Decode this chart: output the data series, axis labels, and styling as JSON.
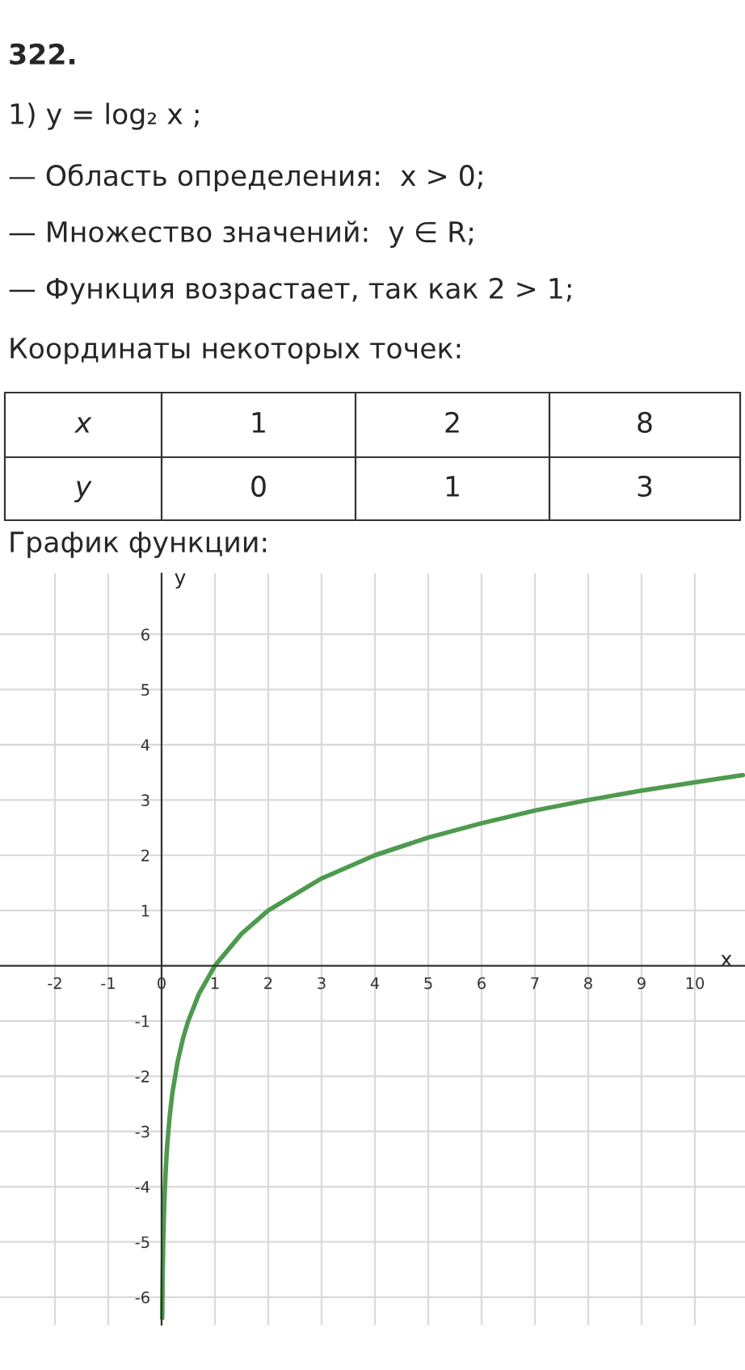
{
  "chart_data": {
    "type": "line",
    "annotations": [
      "322.",
      "1) y = log₂ x ;",
      "— Область определения:  x > 0;",
      "— Множество значений:  y ∈ R;",
      "— Функция возрастает, так как 2 > 1;",
      "Координаты некоторых точек:",
      "x",
      "1",
      "2",
      "8",
      "y",
      "0",
      "1",
      "3",
      "График функции:"
    ],
    "xlabel": "x",
    "ylabel": "y",
    "series": [
      {
        "color": "#4e9a4e",
        "x": [
          0.012,
          0.02,
          0.03,
          0.05,
          0.075,
          0.1,
          0.15,
          0.2,
          0.3,
          0.4,
          0.5,
          0.7,
          1,
          1.5,
          2,
          3,
          4,
          5,
          6,
          7,
          8,
          9,
          10,
          10.9
        ],
        "values": [
          -6.38,
          -5.64,
          -5.06,
          -4.32,
          -3.74,
          -3.32,
          -2.74,
          -2.32,
          -1.74,
          -1.32,
          -1,
          -0.51,
          0,
          0.58,
          1,
          1.58,
          2,
          2.32,
          2.58,
          2.81,
          3,
          3.17,
          3.32,
          3.45
        ]
      }
    ],
    "xlim": [
      -3.03,
      10.94
    ],
    "ylim": [
      -6.5,
      7.1
    ],
    "xticks": [
      -2,
      -1,
      0,
      1,
      2,
      3,
      4,
      5,
      6,
      7,
      8,
      9,
      10
    ],
    "yticks": [
      -6,
      -5,
      -4,
      -3,
      -2,
      -1,
      1,
      2,
      3,
      4,
      5,
      6
    ],
    "grid": true,
    "marker": "none",
    "line_style": "solid"
  }
}
